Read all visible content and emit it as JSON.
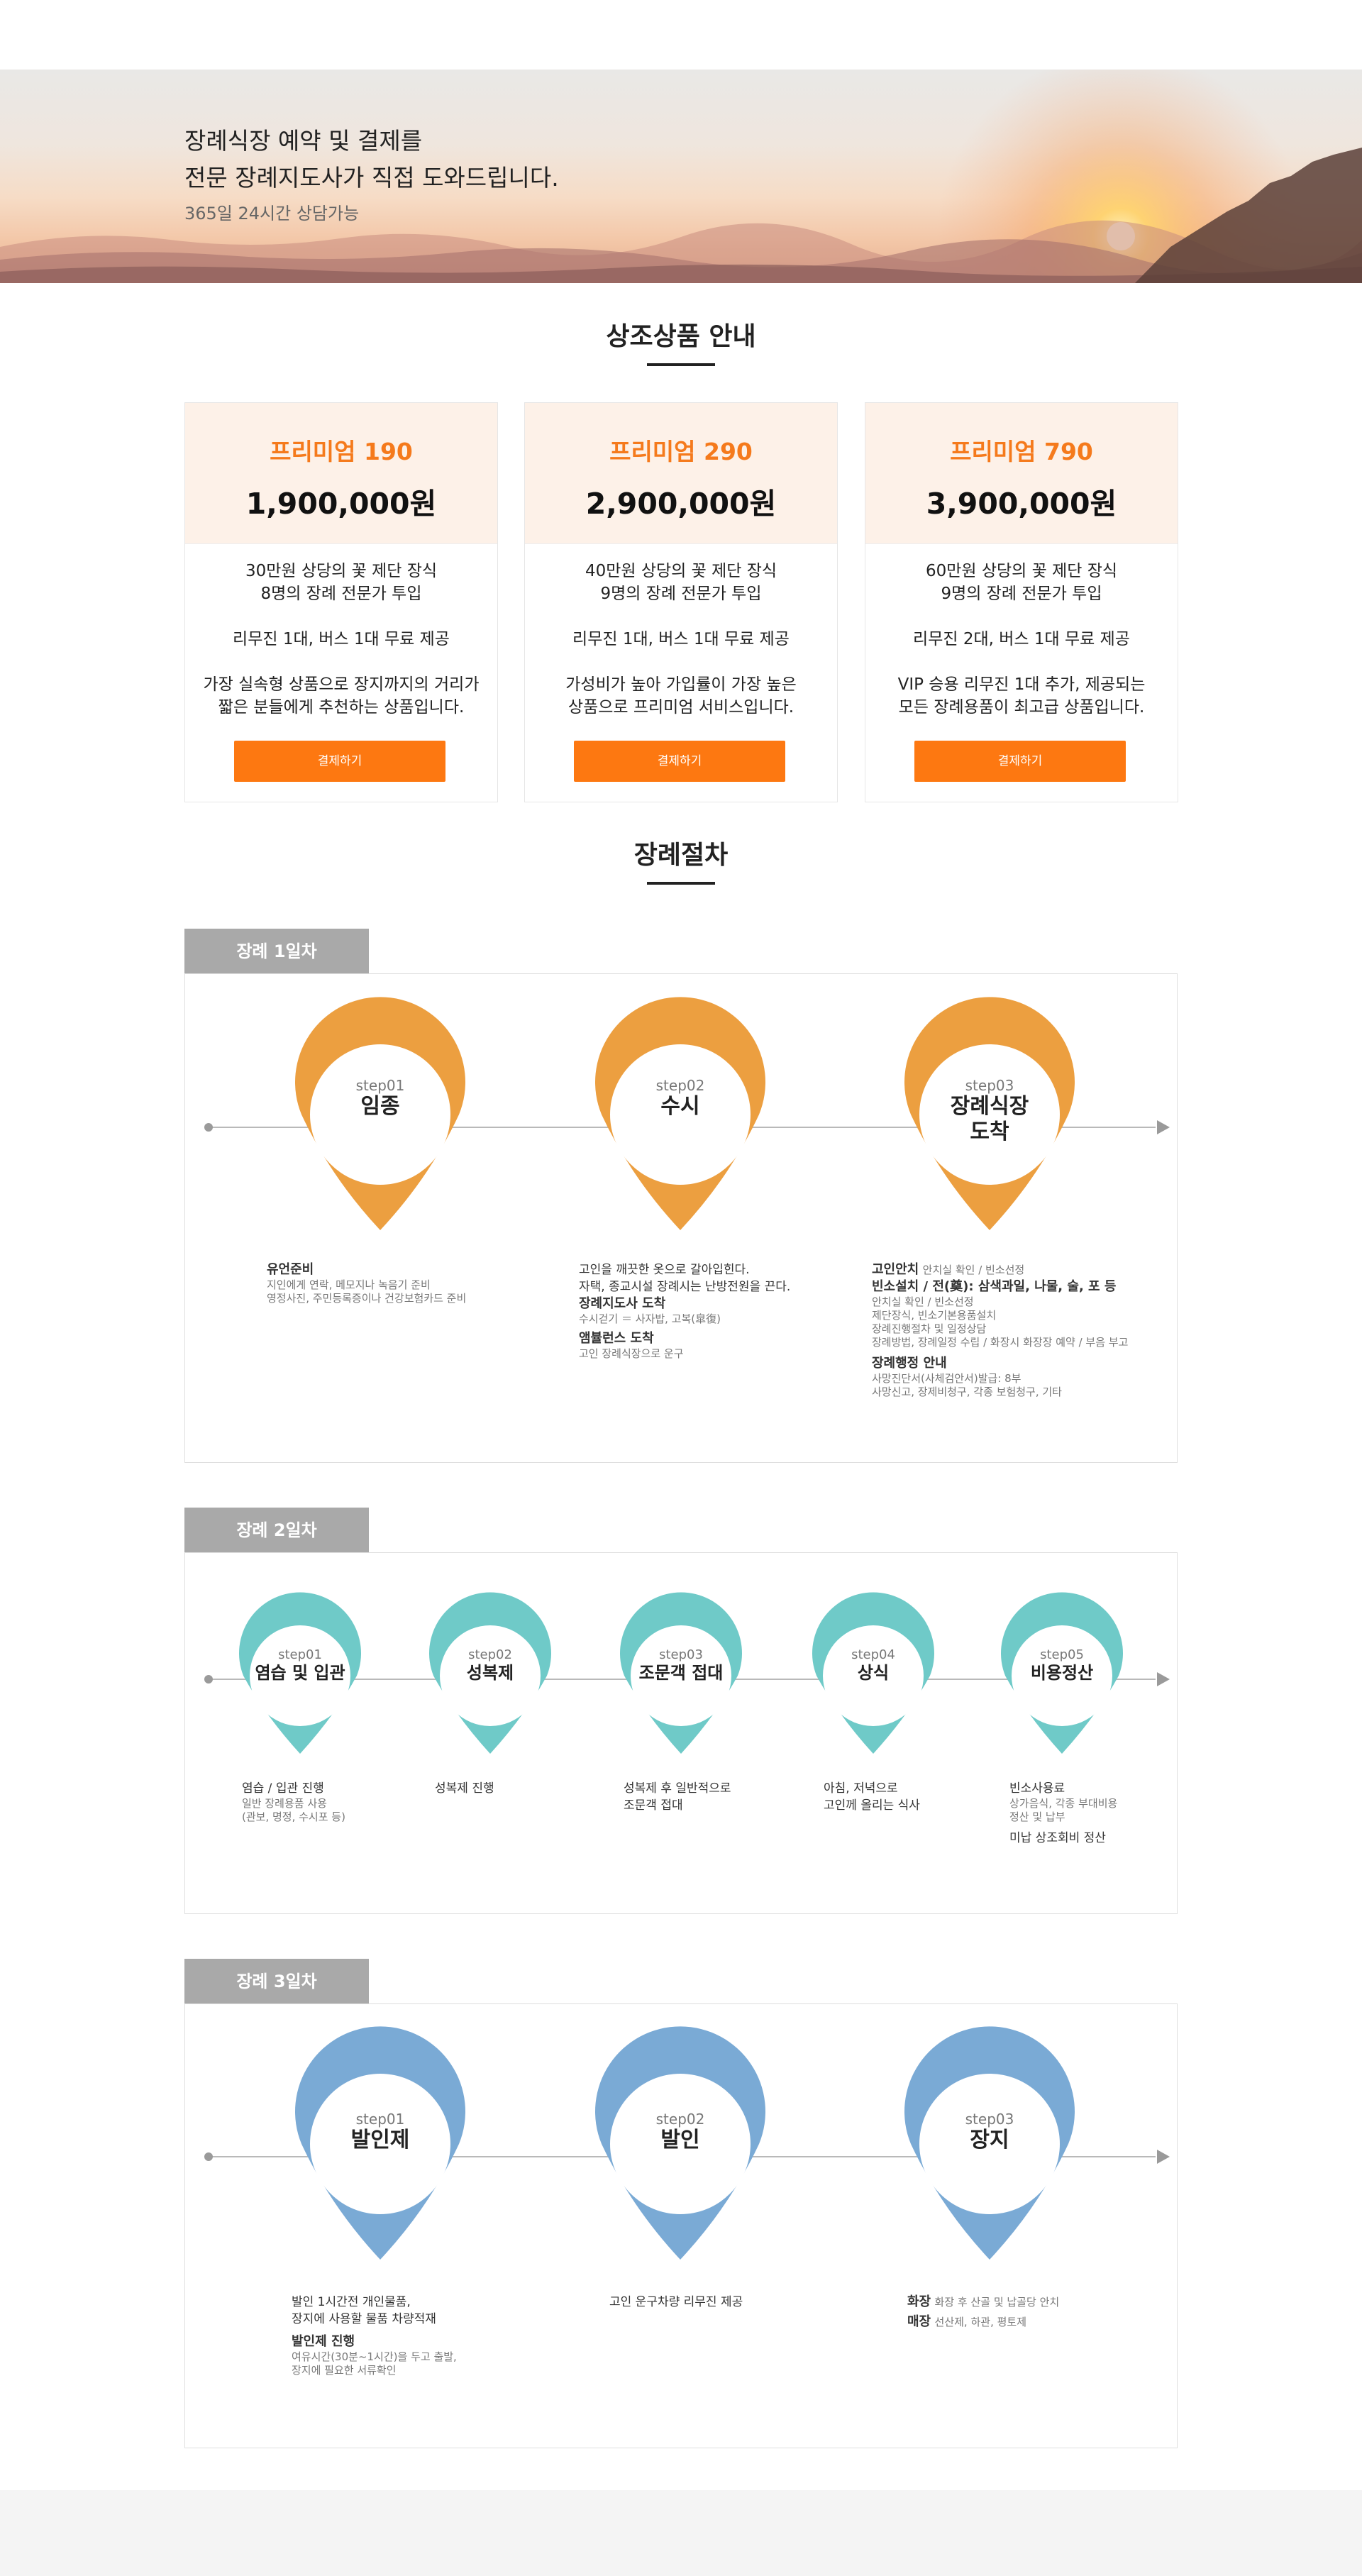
{
  "hero": {
    "line1": "장례식장 예약 및 결제를",
    "line2": "전문 장례지도사가 직접 도와드립니다.",
    "sub": "365일 24시간 상담가능"
  },
  "products": {
    "title": "상조상품 안내",
    "items": [
      {
        "name": "프리미엄 190",
        "price": "1,900,000원",
        "l1": "30만원 상당의 꽃 제단 장식",
        "l2": "8명의 장례 전문가 투입",
        "l3": "리무진 1대, 버스 1대 무료 제공",
        "l4": "가장 실속형 상품으로 장지까지의 거리가",
        "l5": "짧은 분들에게 추천하는 상품입니다.",
        "btn": "결제하기"
      },
      {
        "name": "프리미엄 290",
        "price": "2,900,000원",
        "l1": "40만원 상당의 꽃 제단 장식",
        "l2": "9명의 장례 전문가 투입",
        "l3": "리무진 1대, 버스 1대 무료 제공",
        "l4": "가성비가 높아 가입률이 가장 높은",
        "l5": "상품으로 프리미엄 서비스입니다.",
        "btn": "결제하기"
      },
      {
        "name": "프리미엄 790",
        "price": "3,900,000원",
        "l1": "60만원 상당의 꽃 제단 장식",
        "l2": "9명의 장례 전문가 투입",
        "l3": "리무진 2대, 버스 1대 무료 제공",
        "l4": "VIP 승용 리무진 1대 추가, 제공되는",
        "l5": "모든 장례용품이 최고급 상품입니다.",
        "btn": "결제하기"
      }
    ]
  },
  "procedure": {
    "title": "장례절차",
    "colors": {
      "day1": "#ec9f40",
      "day2": "#6fcac8",
      "day3": "#7aaad5"
    },
    "day1": {
      "tab": "장례 1일차",
      "steps": [
        {
          "step": "step01",
          "name": "임종"
        },
        {
          "step": "step02",
          "name": "수시"
        },
        {
          "step": "step03",
          "name1": "장례식장",
          "name2": "도착"
        }
      ],
      "d1": {
        "t1": "유언준비",
        "s1": "지인에게 연락, 메모지나 녹음기 준비",
        "s2": "영정사진, 주민등록증이나 건강보험카드 준비"
      },
      "d2": {
        "t1": "고인을 깨끗한 옷으로 갈아입힌다.",
        "t2": "자택, 종교시설 장례시는 난방전원을 끈다.",
        "b1": "장례지도사 도착",
        "s1": "수시걷기 ＝ 사자밥, 고복(皐復)",
        "b2": "앰뷸런스 도착",
        "s2": "고인 장례식장으로 운구"
      },
      "d3": {
        "b1": "고인안치",
        "s1": "안치실 확인 / 빈소선정",
        "b2": "빈소설치 / 전(奠): 삼색과일, 나물, 술, 포 등",
        "s2": "안치실 확인 / 빈소선정",
        "s3": "제단장식, 빈소기본용품설치",
        "s4": "장례진행절차 및 일정상담",
        "s5": "장례방법, 장례일정 수립 / 화장시 화장장 예약 / 부음 부고",
        "b3": "장례행정 안내",
        "s6": "사망진단서(사체검안서)발급: 8부",
        "s7": "사망신고, 장제비청구, 각종 보험청구, 기타"
      }
    },
    "day2": {
      "tab": "장례 2일차",
      "steps": [
        {
          "step": "step01",
          "name": "염습 및 입관"
        },
        {
          "step": "step02",
          "name": "성복제"
        },
        {
          "step": "step03",
          "name": "조문객 접대"
        },
        {
          "step": "step04",
          "name": "상식"
        },
        {
          "step": "step05",
          "name": "비용정산"
        }
      ],
      "d1": {
        "t1": "염습 / 입관 진행",
        "s1": "일반 장례용품 사용",
        "s2": "(관보, 명정, 수시포 등)"
      },
      "d2": {
        "t1": "성복제 진행"
      },
      "d3": {
        "t1": "성복제 후 일반적으로",
        "t2": "조문객 접대"
      },
      "d4": {
        "t1": "아침, 저녁으로",
        "t2": "고인께 올리는 식사"
      },
      "d5": {
        "t1": "빈소사용료",
        "s1": "상가음식, 각종 부대비용",
        "s2": "정산 및 납부",
        "t2": "미납 상조회비 정산"
      }
    },
    "day3": {
      "tab": "장례 3일차",
      "steps": [
        {
          "step": "step01",
          "name": "발인제"
        },
        {
          "step": "step02",
          "name": "발인"
        },
        {
          "step": "step03",
          "name": "장지"
        }
      ],
      "d1": {
        "t1": "발인 1시간전 개인물품,",
        "t2": "장지에 사용할 물품 차량적재",
        "b1": "발인제 진행",
        "s1": "여유시간(30분~1시간)을 두고 출발,",
        "s2": "장지에 필요한 서류확인"
      },
      "d2": {
        "t1": "고인 운구차량 리무진 제공"
      },
      "d3": {
        "b1": "화장",
        "s1": "화장 후 산골 및 납골당 안치",
        "b2": "매장",
        "s2": "선산제, 하관, 평토제"
      }
    }
  }
}
